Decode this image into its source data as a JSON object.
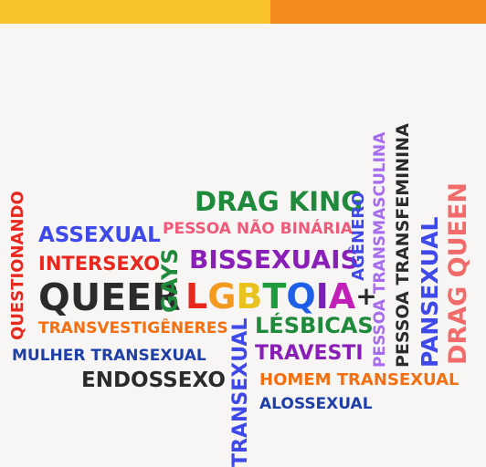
{
  "words": {
    "drag_king": "DRAG KING",
    "assexual": "ASSEXUAL",
    "pessoa_nao_binaria": "PESSOA NÃO BINÁRIA",
    "intersexo": "INTERSEXO",
    "bissexuais": "BISSEXUAIS",
    "queer": "QUEER",
    "gays": "GAYS",
    "lgbtqia_letters": [
      "L",
      "G",
      "B",
      "T",
      "Q",
      "I",
      "A",
      "+"
    ],
    "transvestigeneres": "TRANSVESTIGÊNERES",
    "lesbicas": "LÉSBICAS",
    "mulher_transexual": "MULHER TRANSEXUAL",
    "travesti": "TRAVESTI",
    "endossexo": "ENDOSSEXO",
    "homem_transexual": "HOMEM TRANSEXUAL",
    "alossexual": "ALOSSEXUAL",
    "questionando": "QUESTIONANDO",
    "transexual": "TRANSEXUAL",
    "agenero": "AGÊNERO",
    "pessoa_transmasculina": "PESSOA TRANSMASCULINA",
    "pessoa_transfeminina": "PESSOA TRANSFEMININA",
    "pansexual": "PANSEXUAL",
    "drag_queen": "DRAG QUEEN"
  },
  "colors": {
    "top_bar_left": "#f8c22a",
    "top_bar_right": "#f38a1f",
    "green": "#1f8a3c",
    "blue": "#3f48e8",
    "pink": "#f05a7a",
    "red": "#e8271f",
    "purple": "#8a1fb8",
    "dark": "#2b2b2b",
    "orange": "#f36f12",
    "navy": "#1f3fa8",
    "lavender": "#a66cf0",
    "coral": "#f26b6b",
    "lgbtqia": [
      "#e8271f",
      "#f39a1f",
      "#e8c21f",
      "#1f9a3c",
      "#1f5fe8",
      "#7a1fb8",
      "#c21fb8",
      "#2b2b2b"
    ]
  }
}
